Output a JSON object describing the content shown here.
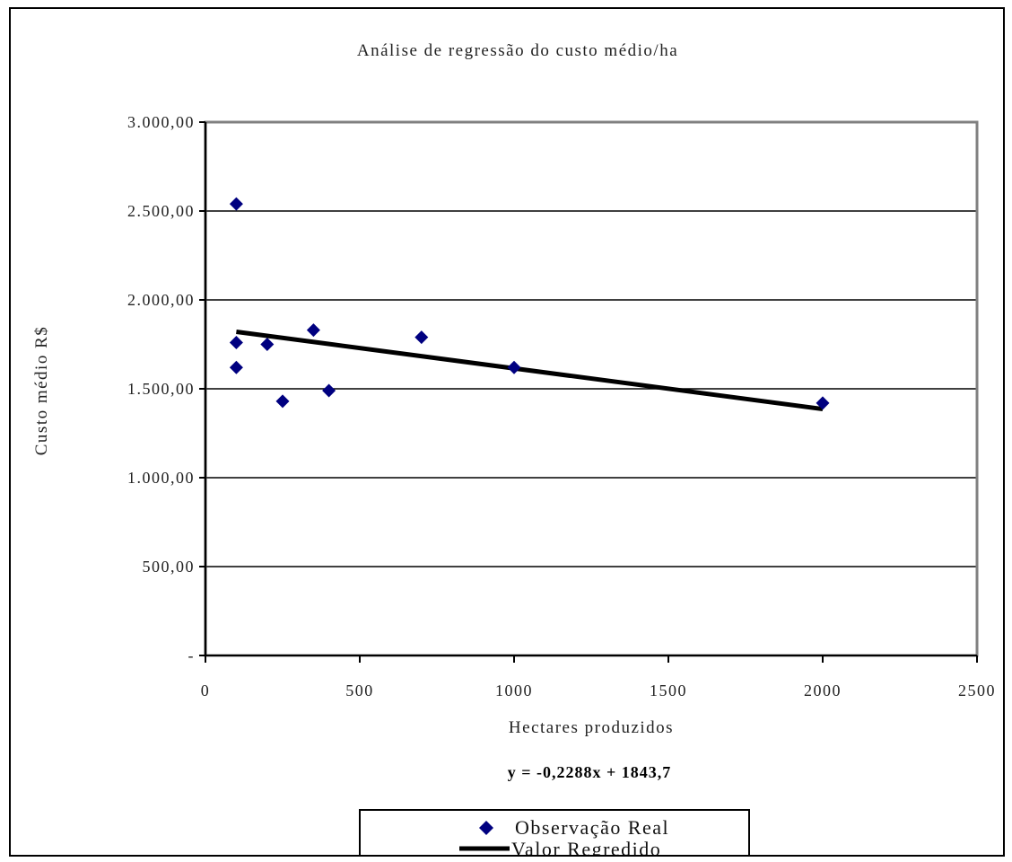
{
  "chart_data": {
    "type": "scatter",
    "title": "Análise de regressão do custo médio/ha",
    "xlabel": "Hectares produzidos",
    "ylabel": "Custo médio R$",
    "xlim": [
      0,
      2500
    ],
    "ylim": [
      0,
      3000
    ],
    "x_ticks": [
      0,
      500,
      1000,
      1500,
      2000,
      2500
    ],
    "x_tick_labels": [
      "0",
      "500",
      "1000",
      "1500",
      "2000",
      "2500"
    ],
    "y_ticks": [
      0,
      500,
      1000,
      1500,
      2000,
      2500,
      3000
    ],
    "y_tick_labels": [
      "-",
      "500,00",
      "1.000,00",
      "1.500,00",
      "2.000,00",
      "2.500,00",
      "3.000,00"
    ],
    "grid": "horizontal",
    "equation": "y = -0,2288x + 1843,7",
    "legend_position": "bottom",
    "series": [
      {
        "name": "Observação Real",
        "type": "scatter",
        "marker": "diamond",
        "color": "#000080",
        "x": [
          100,
          100,
          100,
          200,
          250,
          350,
          400,
          700,
          1000,
          2000
        ],
        "y": [
          2540,
          1760,
          1620,
          1750,
          1430,
          1830,
          1490,
          1790,
          1620,
          1420
        ]
      },
      {
        "name": "Valor Regredido",
        "type": "line",
        "color": "#000000",
        "x": [
          100,
          2000
        ],
        "y": [
          1820.82,
          1386.1
        ]
      }
    ]
  }
}
